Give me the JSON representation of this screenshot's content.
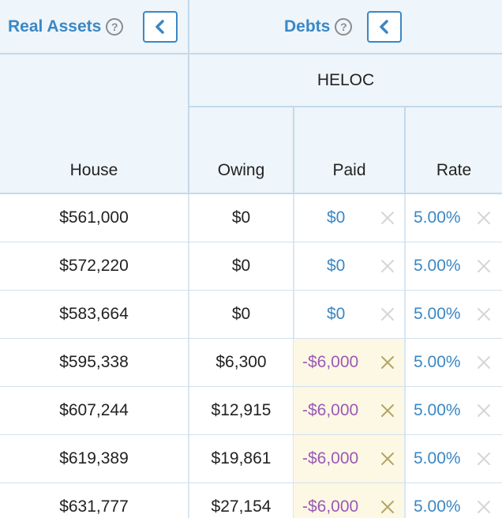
{
  "groups": {
    "real_assets": {
      "title": "Real Assets",
      "help": "?"
    },
    "debts": {
      "title": "Debts",
      "help": "?"
    }
  },
  "subgroup": {
    "heloc": "HELOC"
  },
  "columns": {
    "house": "House",
    "owing": "Owing",
    "paid": "Paid",
    "rate": "Rate"
  },
  "icons": {
    "collapse": "chevron-left-icon",
    "clear": "close-icon",
    "help": "question-circle-icon"
  },
  "colors": {
    "accent": "#3b87c4",
    "negative_paid": "#9b59b6",
    "paid_highlight": "#fdf8e4",
    "header_bg": "#eef5fb"
  },
  "rows": [
    {
      "house": "$561,000",
      "owing": "$0",
      "paid": "$0",
      "rate": "5.00%",
      "paid_negative": false
    },
    {
      "house": "$572,220",
      "owing": "$0",
      "paid": "$0",
      "rate": "5.00%",
      "paid_negative": false
    },
    {
      "house": "$583,664",
      "owing": "$0",
      "paid": "$0",
      "rate": "5.00%",
      "paid_negative": false
    },
    {
      "house": "$595,338",
      "owing": "$6,300",
      "paid": "-$6,000",
      "rate": "5.00%",
      "paid_negative": true
    },
    {
      "house": "$607,244",
      "owing": "$12,915",
      "paid": "-$6,000",
      "rate": "5.00%",
      "paid_negative": true
    },
    {
      "house": "$619,389",
      "owing": "$19,861",
      "paid": "-$6,000",
      "rate": "5.00%",
      "paid_negative": true
    },
    {
      "house": "$631,777",
      "owing": "$27,154",
      "paid": "-$6,000",
      "rate": "5.00%",
      "paid_negative": true
    }
  ]
}
